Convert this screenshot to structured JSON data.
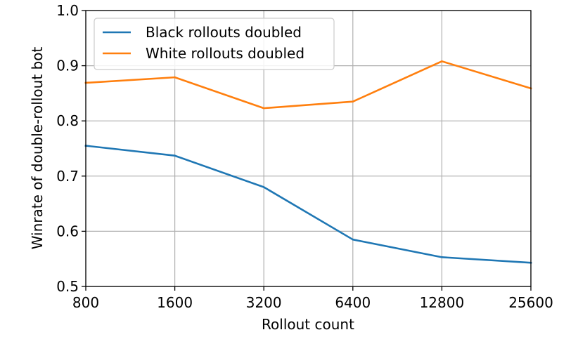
{
  "chart_data": {
    "type": "line",
    "x": [
      "800",
      "1600",
      "3200",
      "6400",
      "12800",
      "25600"
    ],
    "xlabel": "Rollout count",
    "ylabel": "Winrate of double-rollout bot",
    "ylim": [
      0.5,
      1.0
    ],
    "yticks": [
      "0.5",
      "0.6",
      "0.7",
      "0.8",
      "0.9",
      "1.0"
    ],
    "grid": true,
    "legend_position": "top-left",
    "series": [
      {
        "name": "Black rollouts doubled",
        "color": "#1f77b4",
        "values": [
          0.755,
          0.737,
          0.68,
          0.585,
          0.553,
          0.543
        ]
      },
      {
        "name": "White rollouts doubled",
        "color": "#ff7f0e",
        "values": [
          0.869,
          0.879,
          0.823,
          0.835,
          0.908,
          0.859
        ]
      }
    ]
  }
}
